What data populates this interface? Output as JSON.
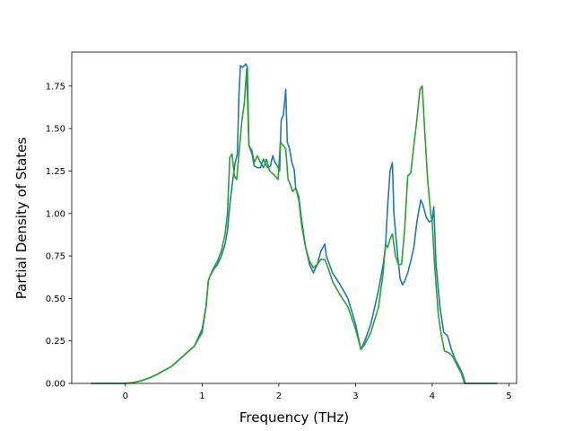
{
  "chart_data": {
    "type": "line",
    "title": "",
    "xlabel": "Frequency (THz)",
    "ylabel": "Partial Density of States",
    "xlim": [
      -0.7,
      5.1
    ],
    "ylim": [
      0,
      1.95
    ],
    "grid": false,
    "legend": "none",
    "xticks": [
      "0",
      "1",
      "2",
      "3",
      "4",
      "5"
    ],
    "yticks": [
      "0.00",
      "0.25",
      "0.50",
      "0.75",
      "1.00",
      "1.25",
      "1.50",
      "1.75"
    ],
    "series": [
      {
        "color": "#1f77b4",
        "points": [
          [
            -0.45,
            0
          ],
          [
            0,
            0
          ],
          [
            0.1,
            0.005
          ],
          [
            0.2,
            0.015
          ],
          [
            0.3,
            0.03
          ],
          [
            0.4,
            0.05
          ],
          [
            0.5,
            0.075
          ],
          [
            0.6,
            0.1
          ],
          [
            0.7,
            0.14
          ],
          [
            0.8,
            0.18
          ],
          [
            0.9,
            0.22
          ],
          [
            0.95,
            0.27
          ],
          [
            1.0,
            0.32
          ],
          [
            1.05,
            0.45
          ],
          [
            1.08,
            0.6
          ],
          [
            1.1,
            0.63
          ],
          [
            1.15,
            0.67
          ],
          [
            1.2,
            0.7
          ],
          [
            1.25,
            0.75
          ],
          [
            1.3,
            0.82
          ],
          [
            1.33,
            0.9
          ],
          [
            1.36,
            1.05
          ],
          [
            1.4,
            1.2
          ],
          [
            1.43,
            1.3
          ],
          [
            1.46,
            1.35
          ],
          [
            1.48,
            1.7
          ],
          [
            1.5,
            1.87
          ],
          [
            1.53,
            1.86
          ],
          [
            1.57,
            1.88
          ],
          [
            1.59,
            1.86
          ],
          [
            1.61,
            1.4
          ],
          [
            1.65,
            1.35
          ],
          [
            1.68,
            1.28
          ],
          [
            1.72,
            1.27
          ],
          [
            1.76,
            1.27
          ],
          [
            1.8,
            1.32
          ],
          [
            1.85,
            1.27
          ],
          [
            1.89,
            1.28
          ],
          [
            1.92,
            1.34
          ],
          [
            1.95,
            1.3
          ],
          [
            1.98,
            1.28
          ],
          [
            2.01,
            1.25
          ],
          [
            2.03,
            1.55
          ],
          [
            2.06,
            1.58
          ],
          [
            2.09,
            1.73
          ],
          [
            2.11,
            1.42
          ],
          [
            2.14,
            1.38
          ],
          [
            2.17,
            1.3
          ],
          [
            2.2,
            1.26
          ],
          [
            2.22,
            1.15
          ],
          [
            2.26,
            1.1
          ],
          [
            2.3,
            0.95
          ],
          [
            2.35,
            0.8
          ],
          [
            2.4,
            0.7
          ],
          [
            2.45,
            0.65
          ],
          [
            2.5,
            0.7
          ],
          [
            2.55,
            0.78
          ],
          [
            2.6,
            0.82
          ],
          [
            2.62,
            0.75
          ],
          [
            2.66,
            0.7
          ],
          [
            2.7,
            0.65
          ],
          [
            2.8,
            0.58
          ],
          [
            2.9,
            0.5
          ],
          [
            3.0,
            0.35
          ],
          [
            3.07,
            0.2
          ],
          [
            3.12,
            0.25
          ],
          [
            3.2,
            0.35
          ],
          [
            3.3,
            0.55
          ],
          [
            3.36,
            0.7
          ],
          [
            3.39,
            0.8
          ],
          [
            3.42,
            1.05
          ],
          [
            3.45,
            1.25
          ],
          [
            3.48,
            1.3
          ],
          [
            3.5,
            1.0
          ],
          [
            3.55,
            0.75
          ],
          [
            3.58,
            0.62
          ],
          [
            3.61,
            0.58
          ],
          [
            3.64,
            0.6
          ],
          [
            3.68,
            0.65
          ],
          [
            3.72,
            0.72
          ],
          [
            3.76,
            0.8
          ],
          [
            3.8,
            0.95
          ],
          [
            3.85,
            1.08
          ],
          [
            3.88,
            1.05
          ],
          [
            3.92,
            0.98
          ],
          [
            3.96,
            0.95
          ],
          [
            4.0,
            0.96
          ],
          [
            4.02,
            1.04
          ],
          [
            4.05,
            0.7
          ],
          [
            4.1,
            0.45
          ],
          [
            4.15,
            0.3
          ],
          [
            4.2,
            0.28
          ],
          [
            4.25,
            0.2
          ],
          [
            4.3,
            0.14
          ],
          [
            4.35,
            0.1
          ],
          [
            4.4,
            0.05
          ],
          [
            4.43,
            0
          ],
          [
            4.85,
            0
          ]
        ]
      },
      {
        "color": "#2ca02c",
        "points": [
          [
            -0.45,
            0
          ],
          [
            0,
            0
          ],
          [
            0.1,
            0.005
          ],
          [
            0.2,
            0.015
          ],
          [
            0.3,
            0.03
          ],
          [
            0.4,
            0.05
          ],
          [
            0.5,
            0.075
          ],
          [
            0.6,
            0.1
          ],
          [
            0.7,
            0.14
          ],
          [
            0.8,
            0.18
          ],
          [
            0.9,
            0.22
          ],
          [
            0.95,
            0.26
          ],
          [
            1.0,
            0.3
          ],
          [
            1.05,
            0.45
          ],
          [
            1.08,
            0.6
          ],
          [
            1.1,
            0.63
          ],
          [
            1.15,
            0.68
          ],
          [
            1.2,
            0.72
          ],
          [
            1.25,
            0.78
          ],
          [
            1.3,
            0.88
          ],
          [
            1.33,
            1.0
          ],
          [
            1.36,
            1.33
          ],
          [
            1.39,
            1.35
          ],
          [
            1.42,
            1.22
          ],
          [
            1.45,
            1.2
          ],
          [
            1.48,
            1.35
          ],
          [
            1.52,
            1.55
          ],
          [
            1.55,
            1.65
          ],
          [
            1.58,
            1.85
          ],
          [
            1.61,
            1.4
          ],
          [
            1.65,
            1.37
          ],
          [
            1.68,
            1.3
          ],
          [
            1.72,
            1.34
          ],
          [
            1.76,
            1.3
          ],
          [
            1.8,
            1.27
          ],
          [
            1.84,
            1.32
          ],
          [
            1.88,
            1.25
          ],
          [
            1.91,
            1.24
          ],
          [
            1.95,
            1.22
          ],
          [
            1.99,
            1.2
          ],
          [
            2.02,
            1.42
          ],
          [
            2.06,
            1.4
          ],
          [
            2.09,
            1.38
          ],
          [
            2.12,
            1.2
          ],
          [
            2.15,
            1.17
          ],
          [
            2.18,
            1.13
          ],
          [
            2.22,
            1.15
          ],
          [
            2.26,
            1.08
          ],
          [
            2.3,
            0.92
          ],
          [
            2.35,
            0.8
          ],
          [
            2.4,
            0.72
          ],
          [
            2.45,
            0.68
          ],
          [
            2.5,
            0.7
          ],
          [
            2.55,
            0.73
          ],
          [
            2.6,
            0.73
          ],
          [
            2.65,
            0.67
          ],
          [
            2.7,
            0.6
          ],
          [
            2.8,
            0.52
          ],
          [
            2.9,
            0.45
          ],
          [
            3.0,
            0.32
          ],
          [
            3.07,
            0.2
          ],
          [
            3.12,
            0.23
          ],
          [
            3.2,
            0.3
          ],
          [
            3.3,
            0.45
          ],
          [
            3.36,
            0.65
          ],
          [
            3.39,
            0.82
          ],
          [
            3.42,
            0.8
          ],
          [
            3.45,
            0.85
          ],
          [
            3.48,
            0.88
          ],
          [
            3.52,
            0.75
          ],
          [
            3.56,
            0.7
          ],
          [
            3.6,
            0.7
          ],
          [
            3.64,
            0.9
          ],
          [
            3.68,
            1.22
          ],
          [
            3.72,
            1.24
          ],
          [
            3.76,
            1.4
          ],
          [
            3.8,
            1.55
          ],
          [
            3.84,
            1.73
          ],
          [
            3.87,
            1.75
          ],
          [
            3.9,
            1.5
          ],
          [
            3.94,
            1.2
          ],
          [
            3.98,
            1.0
          ],
          [
            4.0,
            0.95
          ],
          [
            4.03,
            0.7
          ],
          [
            4.08,
            0.4
          ],
          [
            4.12,
            0.28
          ],
          [
            4.16,
            0.19
          ],
          [
            4.22,
            0.18
          ],
          [
            4.28,
            0.15
          ],
          [
            4.33,
            0.1
          ],
          [
            4.38,
            0.06
          ],
          [
            4.42,
            0
          ],
          [
            4.85,
            0
          ]
        ]
      }
    ]
  }
}
